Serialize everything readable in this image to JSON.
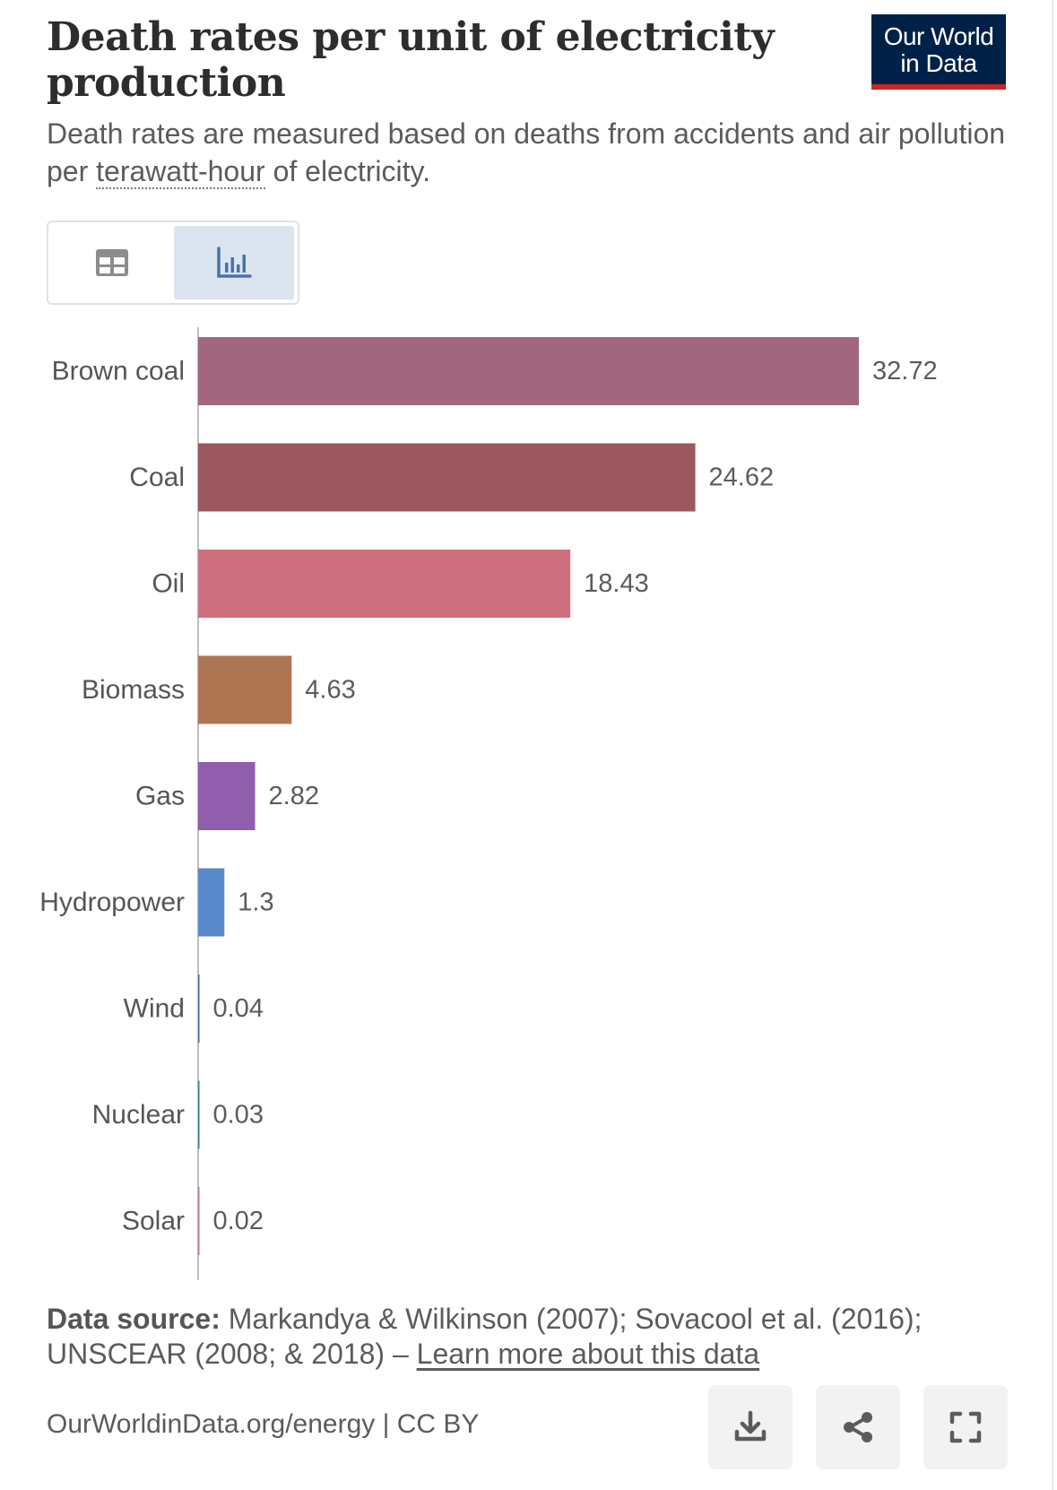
{
  "header": {
    "title": "Death rates per unit of electricity production",
    "subtitle_before": "Death rates are measured based on deaths from accidents and air pollution per ",
    "subtitle_term": "terawatt-hour",
    "subtitle_after": " of electricity.",
    "logo_line1": "Our World",
    "logo_line2": "in Data"
  },
  "view_tabs": {
    "table_icon": "table-icon",
    "chart_icon": "bar-chart-icon",
    "selected": "chart"
  },
  "chart_data": {
    "type": "bar",
    "orientation": "horizontal",
    "categories": [
      "Brown coal",
      "Coal",
      "Oil",
      "Biomass",
      "Gas",
      "Hydropower",
      "Wind",
      "Nuclear",
      "Solar"
    ],
    "values": [
      32.72,
      24.62,
      18.43,
      4.63,
      2.82,
      1.3,
      0.04,
      0.03,
      0.02
    ],
    "value_labels": [
      "32.72",
      "24.62",
      "18.43",
      "4.63",
      "2.82",
      "1.3",
      "0.04",
      "0.03",
      "0.02"
    ],
    "colors": [
      "#a2677f",
      "#9d575e",
      "#cf7080",
      "#ae7552",
      "#905ead",
      "#5889ca",
      "#446aa0",
      "#3d7f84",
      "#c07a82"
    ],
    "xlim": [
      0,
      32.72
    ],
    "grid": false
  },
  "footer": {
    "source_label": "Data source:",
    "source_text": " Markandya & Wilkinson (2007); Sovacool et al. (2016); UNSCEAR (2008; & 2018) – ",
    "learn_more": "Learn more about this data",
    "url": "OurWorldinData.org/energy | CC BY",
    "icons": [
      "download-icon",
      "share-icon",
      "fullscreen-icon"
    ]
  }
}
